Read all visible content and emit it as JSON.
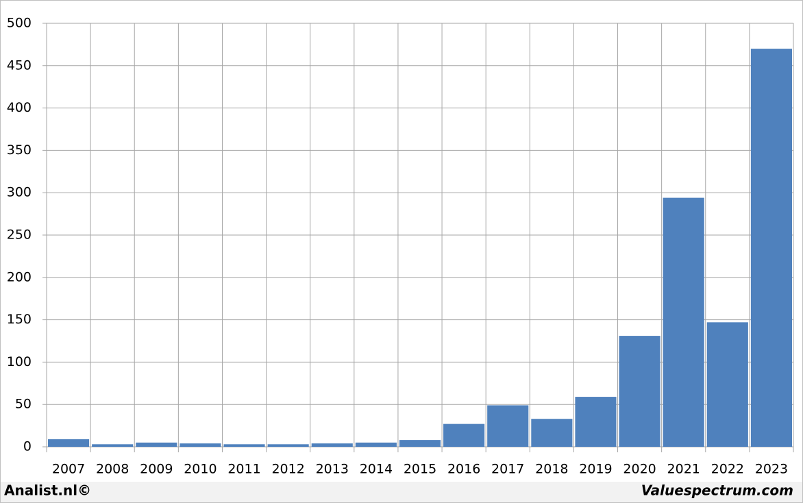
{
  "chart_data": {
    "type": "bar",
    "categories": [
      "2007",
      "2008",
      "2009",
      "2010",
      "2011",
      "2012",
      "2013",
      "2014",
      "2015",
      "2016",
      "2017",
      "2018",
      "2019",
      "2020",
      "2021",
      "2022",
      "2023"
    ],
    "values": [
      9,
      3,
      5,
      4,
      3,
      3,
      4,
      5,
      8,
      27,
      49,
      33,
      59,
      131,
      294,
      147,
      470
    ],
    "color": "#4f81bd",
    "ylim": [
      0,
      500
    ],
    "yticks": [
      0,
      50,
      100,
      150,
      200,
      250,
      300,
      350,
      400,
      450,
      500
    ],
    "grid": true
  },
  "footer": {
    "left": "Analist.nl©",
    "right": "Valuespectrum.com"
  }
}
